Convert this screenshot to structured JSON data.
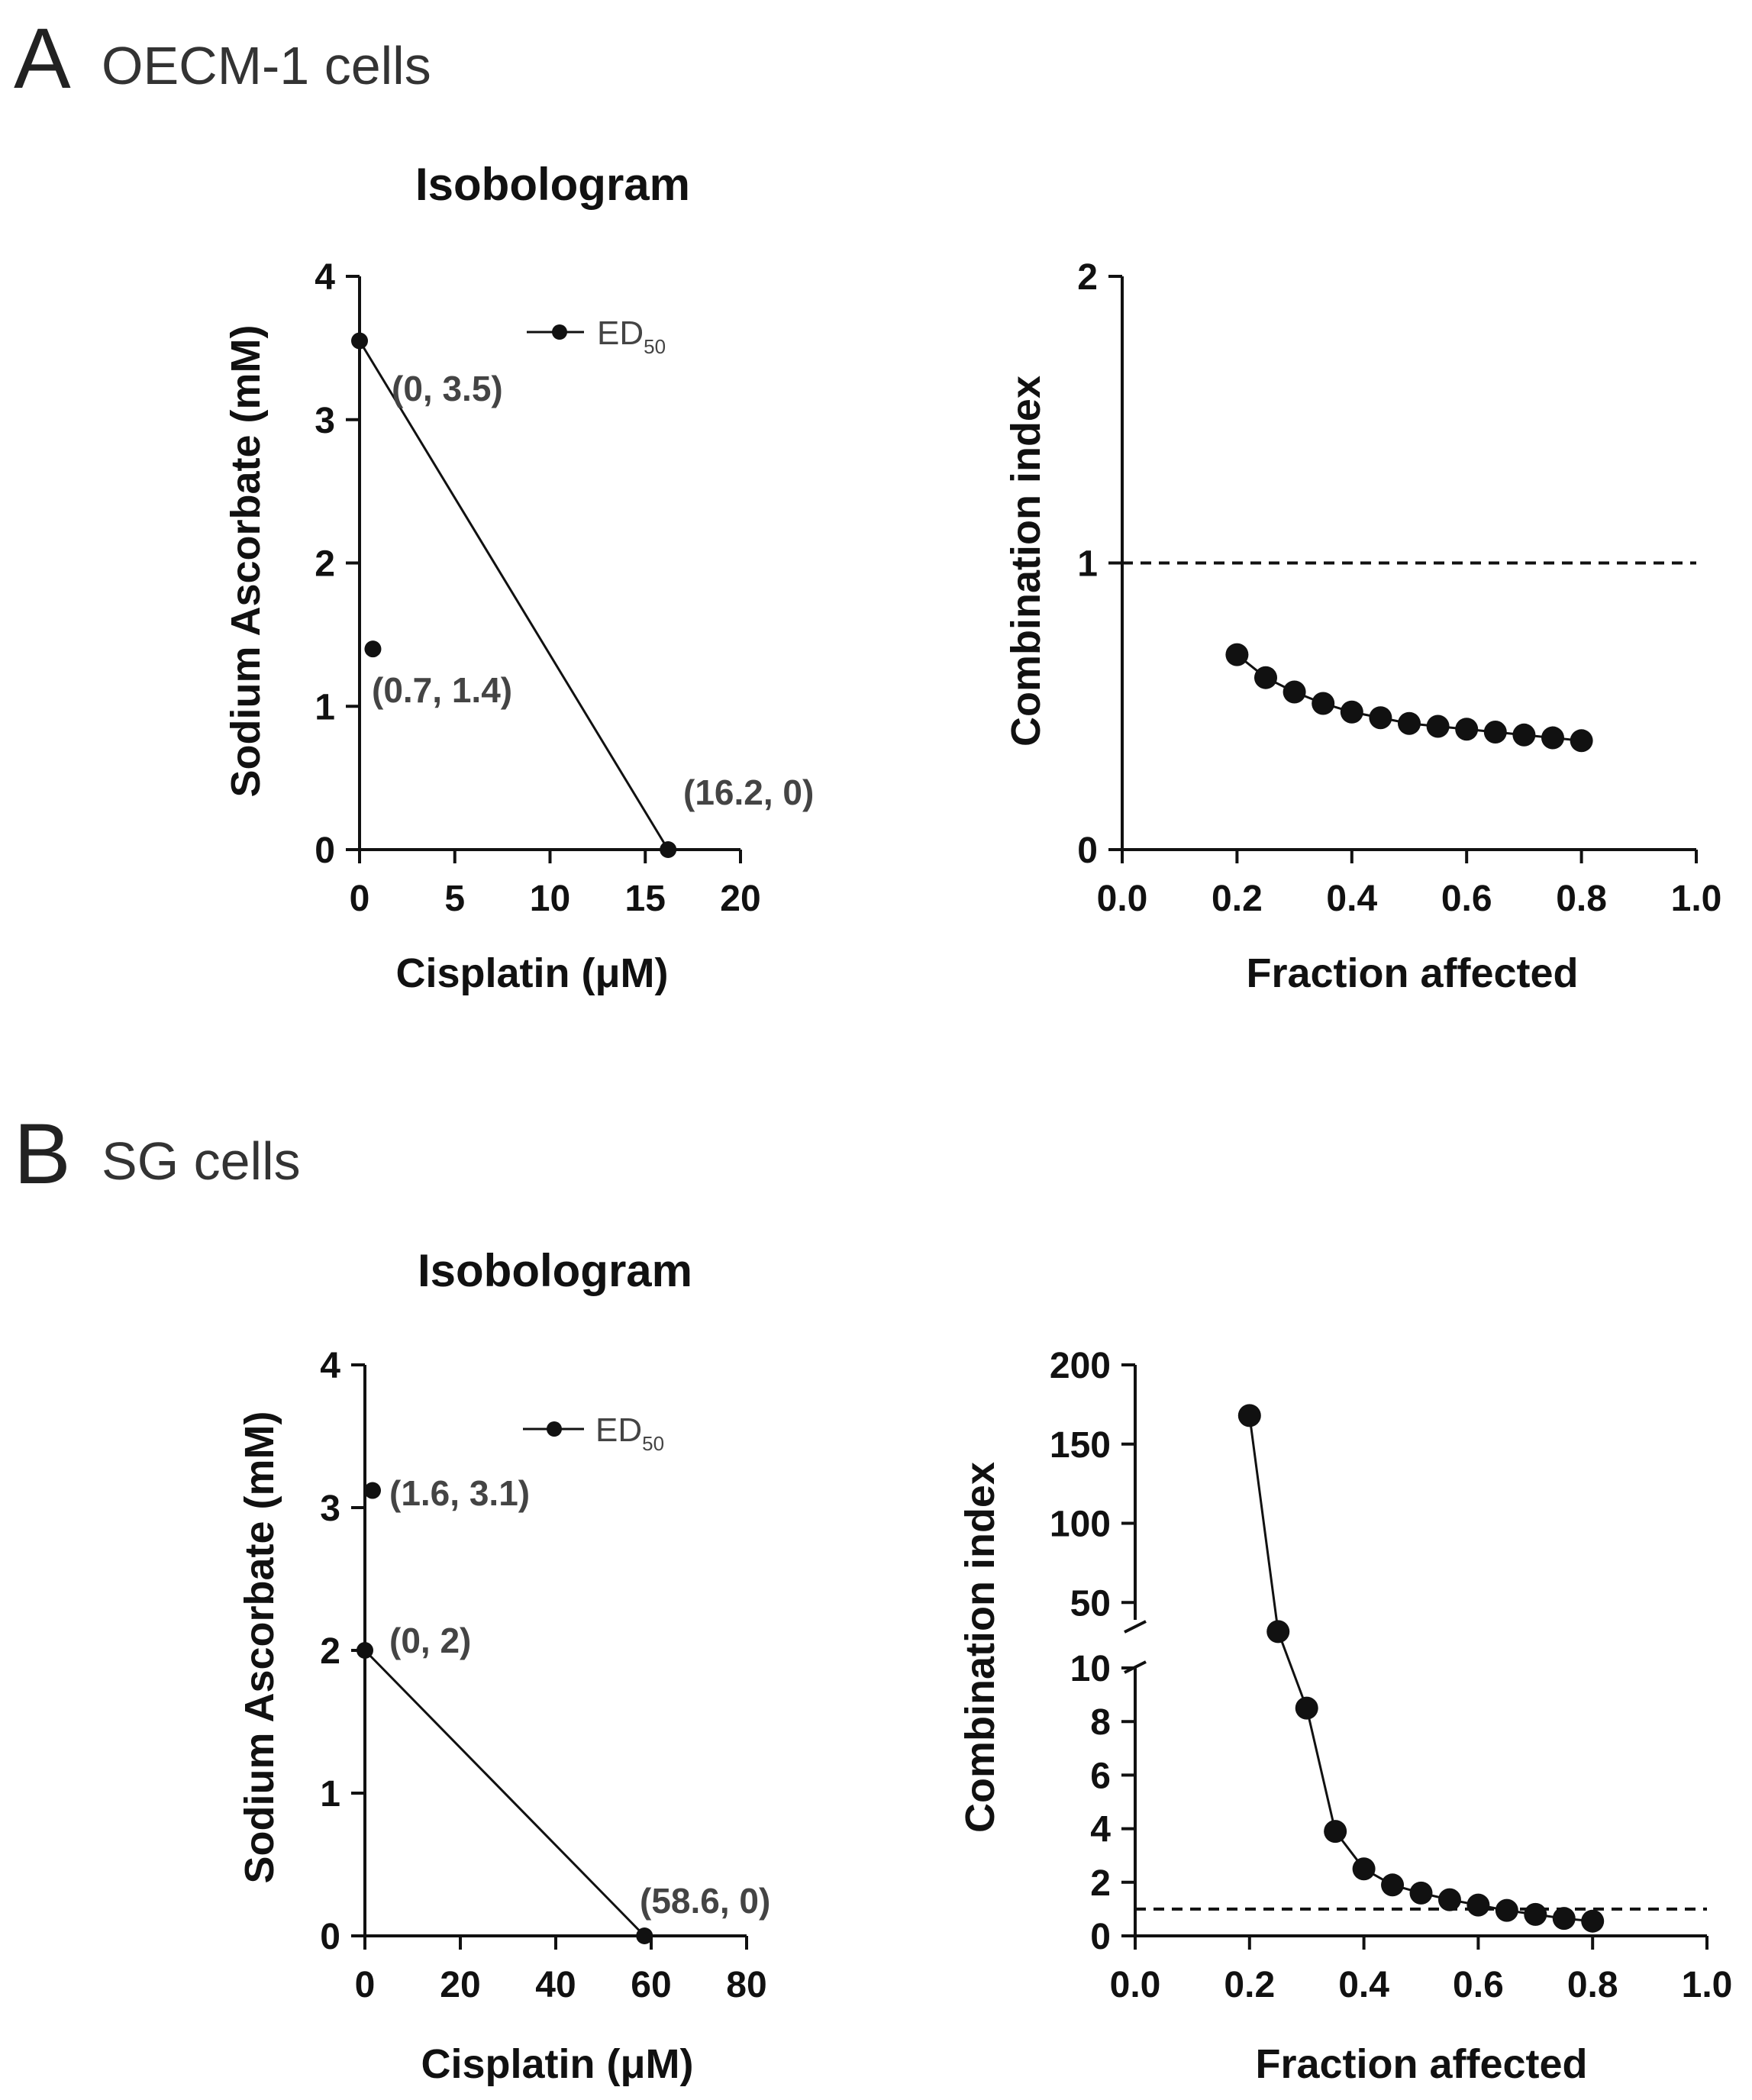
{
  "panels": [
    {
      "letter": "A",
      "title": "OECM-1 cells"
    },
    {
      "letter": "B",
      "title": "SG cells"
    }
  ],
  "chart_data": [
    {
      "id": "A-isobologram",
      "type": "scatter",
      "title": "Isobologram",
      "xlabel": "Cisplatin (μM)",
      "ylabel": "Sodium Ascorbate (mM)",
      "xlim": [
        0,
        20
      ],
      "ylim": [
        0,
        4
      ],
      "xticks": [
        "0",
        "5",
        "10",
        "15",
        "20"
      ],
      "yticks": [
        "0",
        "1",
        "2",
        "3",
        "4"
      ],
      "legend": {
        "label": "ED",
        "subscript": "50",
        "position": "top-right"
      },
      "isobole": [
        [
          0,
          3.55
        ],
        [
          16.2,
          0
        ]
      ],
      "points": [
        {
          "x": 0,
          "y": 3.55,
          "label": "(0, 3.5)"
        },
        {
          "x": 0.7,
          "y": 1.4,
          "label": "(0.7, 1.4)"
        },
        {
          "x": 16.2,
          "y": 0,
          "label": "(16.2, 0)"
        }
      ]
    },
    {
      "id": "A-combination-index",
      "type": "line",
      "xlabel": "Fraction affected",
      "ylabel": "Combination index",
      "xlim": [
        0,
        1
      ],
      "ylim": [
        0,
        2
      ],
      "xticks": [
        "0.0",
        "0.2",
        "0.4",
        "0.6",
        "0.8",
        "1.0"
      ],
      "yticks": [
        "0",
        "1",
        "2"
      ],
      "reference_line": 1,
      "series": [
        {
          "name": "CI",
          "x": [
            0.2,
            0.25,
            0.3,
            0.35,
            0.4,
            0.45,
            0.5,
            0.55,
            0.6,
            0.65,
            0.7,
            0.75,
            0.8
          ],
          "y": [
            0.68,
            0.6,
            0.55,
            0.51,
            0.48,
            0.46,
            0.44,
            0.43,
            0.42,
            0.41,
            0.4,
            0.39,
            0.38
          ]
        }
      ]
    },
    {
      "id": "B-isobologram",
      "type": "scatter",
      "title": "Isobologram",
      "xlabel": "Cisplatin (μM)",
      "ylabel": "Sodium Ascorbate (mM)",
      "xlim": [
        0,
        80
      ],
      "ylim": [
        0,
        4
      ],
      "xticks": [
        "0",
        "20",
        "40",
        "60",
        "80"
      ],
      "yticks": [
        "0",
        "1",
        "2",
        "3",
        "4"
      ],
      "legend": {
        "label": "ED",
        "subscript": "50",
        "position": "top-right"
      },
      "isobole": [
        [
          0,
          2
        ],
        [
          58.6,
          0
        ]
      ],
      "points": [
        {
          "x": 1.6,
          "y": 3.12,
          "label": "(1.6, 3.1)"
        },
        {
          "x": 0,
          "y": 2,
          "label": "(0, 2)"
        },
        {
          "x": 58.6,
          "y": 0,
          "label": "(58.6, 0)"
        }
      ]
    },
    {
      "id": "B-combination-index",
      "type": "line",
      "xlabel": "Fraction affected",
      "ylabel": "Combination index",
      "xlim": [
        0,
        1
      ],
      "ylim": [
        0,
        200
      ],
      "axis_break": {
        "lower": [
          0,
          10
        ],
        "upper": [
          40,
          200
        ]
      },
      "xticks": [
        "0.0",
        "0.2",
        "0.4",
        "0.6",
        "0.8",
        "1.0"
      ],
      "yticks_lower": [
        "0",
        "2",
        "4",
        "6",
        "8",
        "10"
      ],
      "yticks_upper": [
        "50",
        "100",
        "150",
        "200"
      ],
      "reference_line": 1,
      "series": [
        {
          "name": "CI",
          "x": [
            0.2,
            0.25,
            0.3,
            0.35,
            0.4,
            0.45,
            0.5,
            0.55,
            0.6,
            0.65,
            0.7,
            0.75,
            0.8
          ],
          "y": [
            168,
            32,
            8.5,
            3.9,
            2.5,
            1.9,
            1.6,
            1.35,
            1.15,
            0.95,
            0.8,
            0.65,
            0.55
          ]
        }
      ]
    }
  ]
}
